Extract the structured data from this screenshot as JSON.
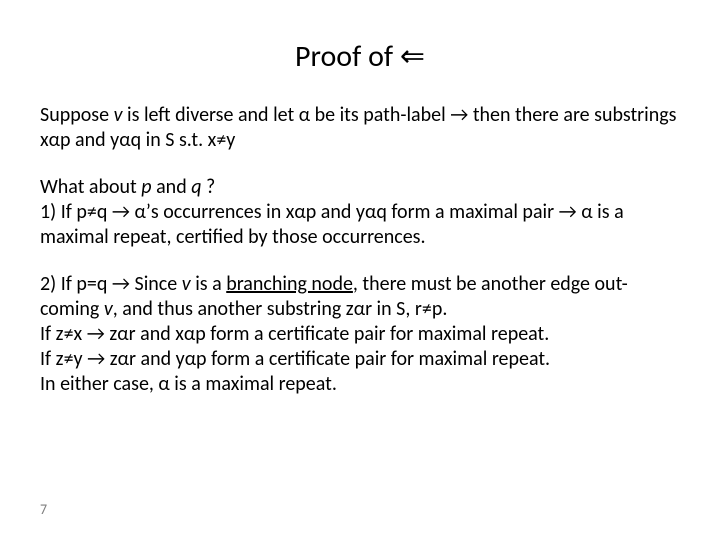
{
  "title_prefix": "Proof of ",
  "title_symbol": "⇐",
  "p1_a": "Suppose ",
  "p1_b": " is left diverse and let ",
  "p1_c": "    be its path-label ",
  "p1_d": " then there are substrings x",
  "p1_e": "p and y",
  "p1_f": "q in S s.t. x",
  "p1_g": "y",
  "p2_a": "What about ",
  "p2_b": " and ",
  "p2_c": " ?",
  "p2_line2_a": "1) If p",
  "p2_line2_b": "q ",
  "p2_line2_c": "’s occurrences in x",
  "p2_line2_d": "p and y",
  "p2_line2_e": "q form a maximal pair ",
  "p2_line2_f": " is a maximal repeat, certified by those occurrences.",
  "p3_a": "2) If p=q ",
  "p3_b": " Since ",
  "p3_c": " is a ",
  "p3_d": "branching node",
  "p3_e": ", there must be another edge out-coming ",
  "p3_f": ", and thus another substring z",
  "p3_g": "r in S, r",
  "p3_h": "p.",
  "p3_line2_a": "If z",
  "p3_line2_b": "x ",
  "p3_line2_c": " z",
  "p3_line2_d": "r and x",
  "p3_line2_e": "p form a certificate pair for maximal repeat.",
  "p3_line3_a": "If z",
  "p3_line3_b": "y ",
  "p3_line3_c": " z",
  "p3_line3_d": "r and y",
  "p3_line3_e": "p form a certificate pair for maximal repeat.",
  "p3_line4_a": "In either case, ",
  "p3_line4_b": " is a maximal repeat.",
  "var_v": "v",
  "var_p": "p",
  "var_q": "q",
  "sym_alpha": "α",
  "sym_implies": "→",
  "sym_neq": "≠",
  "page_number": "7",
  "colors": {
    "text": "#000000",
    "bg": "#ffffff",
    "pgnum": "#7f7f7f"
  },
  "font_sizes": {
    "title": 30,
    "body": 20,
    "pgnum": 14
  }
}
